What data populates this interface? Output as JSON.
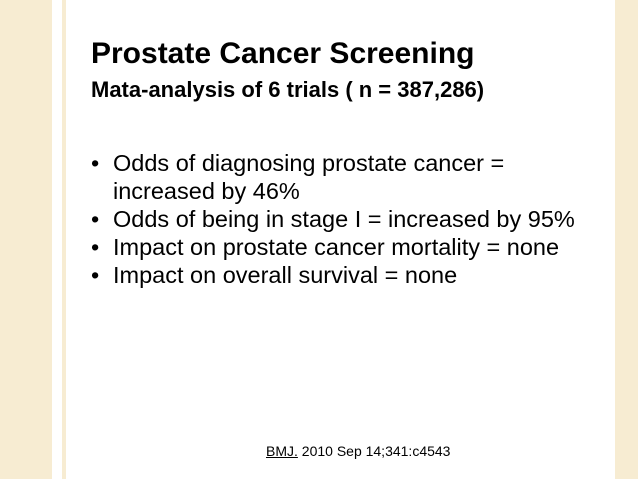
{
  "slide": {
    "title": "Prostate Cancer Screening",
    "subtitle": "Mata-analysis of 6 trials ( n = 387,286)",
    "bullets": [
      "Odds of diagnosing prostate cancer = increased by 46%",
      "Odds of being in stage I = increased by 95%",
      "Impact on prostate cancer mortality = none",
      "Impact on overall survival = none"
    ],
    "citation": {
      "journal": "BMJ.",
      "details": " 2010 Sep 14;341:c4543"
    }
  },
  "colors": {
    "background": "#ffffff",
    "side_bars": "#f7ecd2",
    "text": "#000000"
  }
}
